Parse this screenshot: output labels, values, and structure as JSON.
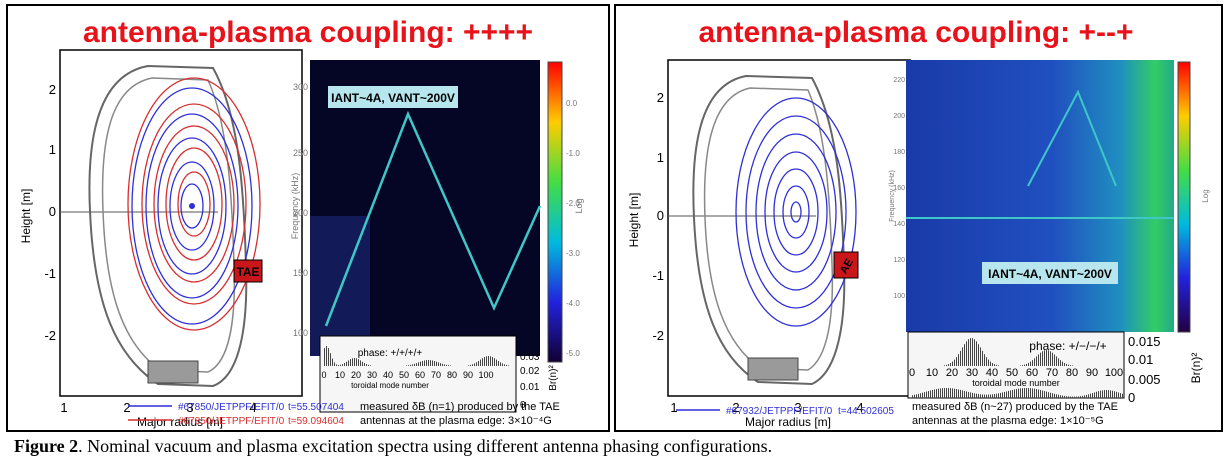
{
  "left": {
    "title": "antenna-plasma coupling: ++++",
    "badge": "IANT~4A, VANT~200V",
    "ylabel": "Height [m]",
    "xlabel": "Major radius [m]",
    "yticks": [
      "2",
      "1",
      "0",
      "-1",
      "-2"
    ],
    "xticks": [
      "1",
      "2",
      "3",
      "4"
    ],
    "tae_label": "TAE",
    "freq_label": "Frequency (kHz)",
    "freq_ticks": [
      "300",
      "250",
      "200",
      "150",
      "100"
    ],
    "colorbar_label": "Log",
    "colorbar_ticks": [
      "0.0",
      "-1.0",
      "-2.0",
      "-3.0",
      "-4.0",
      "-5.0"
    ],
    "inset": {
      "phase": "phase: +/+/+/+",
      "xticks": [
        "0",
        "10",
        "20",
        "30",
        "40",
        "50",
        "60",
        "70",
        "80",
        "90",
        "100"
      ],
      "xlabel": "toroidal mode number",
      "yticks": [
        "0.03",
        "0.02",
        "0.01",
        "0"
      ],
      "ylabel": "Br(n)²"
    },
    "legend": [
      {
        "label": "#67850/JETPPF/EFIT/0",
        "time": "t=55.507404",
        "color": "#2f2fd6"
      },
      {
        "label": "#67850/JETPPF/EFIT/0",
        "time": "t=59.094604",
        "color": "#d62f2f"
      }
    ],
    "note_line1": "measured δB (n=1) produced by the TAE",
    "note_line2": "antennas at the plasma edge: 3×10⁻⁴G"
  },
  "right": {
    "title": "antenna-plasma coupling: +--+",
    "badge": "IANT~4A, VANT~200V",
    "ylabel": "Height [m]",
    "xlabel": "Major radius [m]",
    "yticks": [
      "2",
      "1",
      "0",
      "-1",
      "-2"
    ],
    "xticks": [
      "1",
      "2",
      "3",
      "4"
    ],
    "tae_label": "AE",
    "freq_label": "Frequency (kHz)",
    "freq_ticks": [
      "220",
      "200",
      "180",
      "160",
      "140",
      "120",
      "100"
    ],
    "colorbar_label": "Log",
    "inset": {
      "phase": "phase: +/−/−/+",
      "xticks": [
        "0",
        "10",
        "20",
        "30",
        "40",
        "50",
        "60",
        "70",
        "80",
        "90",
        "100"
      ],
      "xlabel": "toroidal mode number",
      "yticks": [
        "0.015",
        "0.01",
        "0.005",
        "0"
      ],
      "ylabel": "Br(n)²"
    },
    "legend": [
      {
        "label": "#67932/JETPPF/EFIT/0",
        "time": "t=44.502605",
        "color": "#2f2fd6"
      }
    ],
    "note_line1": "measured δB (n~27) produced by the TAE",
    "note_line2": "antennas at the plasma edge: 1×10⁻⁵G"
  },
  "caption": {
    "label": "Figure 2",
    "text": ". Nominal vacuum and plasma excitation spectra using different antenna phasing configurations."
  },
  "colors": {
    "title_red": "#e8121b",
    "badge_bg": "#b7e6ee",
    "spectrogram_dark": "#050525",
    "triangle_line": "#3fc7c7"
  }
}
